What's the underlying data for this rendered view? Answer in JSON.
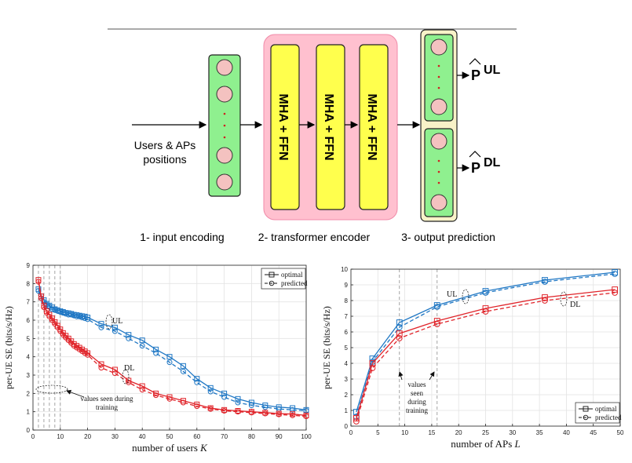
{
  "diagram": {
    "input_label_line1": "Users & APs",
    "input_label_line2": "positions",
    "block_label": "MHA + FFN",
    "output_p": "P",
    "output_ul": "UL",
    "output_dl": "DL",
    "stage1": "1- input encoding",
    "stage2": "2- transformer encoder",
    "stage3": "3- output prediction",
    "colors": {
      "green": "#8ff08f",
      "yellow": "#ffff4d",
      "pink": "#ffc0cf",
      "node": "#f4c2c0",
      "cream": "#f8f2c8",
      "dot": "#d02020"
    }
  },
  "legend": {
    "optimal": "optimal",
    "predicted": "predicted"
  },
  "chart_data": [
    {
      "type": "line",
      "xlabel": "number of users K",
      "ylabel": "per-UE SE (bits/s/Hz)",
      "xlim": [
        0,
        100
      ],
      "ylim": [
        0,
        9
      ],
      "xticks": [
        0,
        10,
        20,
        30,
        40,
        50,
        60,
        70,
        80,
        90,
        100
      ],
      "yticks": [
        0,
        1,
        2,
        3,
        4,
        5,
        6,
        7,
        8,
        9
      ],
      "grid": true,
      "legend_position": "top-right",
      "training_lines": [
        2,
        4,
        6,
        8,
        10
      ],
      "annotations": {
        "ul": "UL",
        "dl": "DL",
        "training": "values seen during training"
      },
      "x": [
        2,
        3,
        4,
        5,
        6,
        7,
        8,
        9,
        10,
        11,
        12,
        13,
        14,
        15,
        16,
        17,
        18,
        19,
        20,
        25,
        30,
        35,
        40,
        45,
        50,
        55,
        60,
        65,
        70,
        75,
        80,
        85,
        90,
        95,
        100
      ],
      "series": [
        {
          "name": "UL optimal",
          "color": "#1f77c4",
          "dash": false,
          "marker": "square",
          "values": [
            7.7,
            7.3,
            7.1,
            6.9,
            6.8,
            6.7,
            6.6,
            6.55,
            6.5,
            6.45,
            6.4,
            6.38,
            6.35,
            6.3,
            6.28,
            6.25,
            6.22,
            6.2,
            6.15,
            5.8,
            5.6,
            5.2,
            4.9,
            4.4,
            4.0,
            3.5,
            2.8,
            2.3,
            2.0,
            1.7,
            1.5,
            1.35,
            1.25,
            1.2,
            1.1
          ]
        },
        {
          "name": "UL predicted",
          "color": "#1f77c4",
          "dash": true,
          "marker": "circle",
          "values": [
            7.6,
            7.2,
            7.0,
            6.85,
            6.75,
            6.6,
            6.55,
            6.5,
            6.45,
            6.4,
            6.35,
            6.3,
            6.3,
            6.25,
            6.2,
            6.2,
            6.15,
            6.1,
            6.05,
            5.6,
            5.4,
            5.0,
            4.6,
            4.2,
            3.7,
            3.2,
            2.6,
            2.1,
            1.8,
            1.5,
            1.35,
            1.25,
            1.15,
            1.1,
            1.05
          ]
        },
        {
          "name": "DL optimal",
          "color": "#e0242a",
          "dash": false,
          "marker": "square",
          "values": [
            8.2,
            7.3,
            6.8,
            6.5,
            6.3,
            6.1,
            5.9,
            5.7,
            5.5,
            5.3,
            5.15,
            5.0,
            4.85,
            4.7,
            4.6,
            4.5,
            4.4,
            4.3,
            4.2,
            3.6,
            3.3,
            2.7,
            2.4,
            2.0,
            1.8,
            1.6,
            1.4,
            1.2,
            1.1,
            1.05,
            1.0,
            0.95,
            0.9,
            0.87,
            0.8
          ]
        },
        {
          "name": "DL predicted",
          "color": "#e0242a",
          "dash": true,
          "marker": "circle",
          "values": [
            8.1,
            7.2,
            6.7,
            6.4,
            6.2,
            6.0,
            5.8,
            5.6,
            5.4,
            5.2,
            5.05,
            4.9,
            4.75,
            4.6,
            4.5,
            4.4,
            4.3,
            4.2,
            4.1,
            3.4,
            3.1,
            2.6,
            2.2,
            1.9,
            1.7,
            1.5,
            1.3,
            1.15,
            1.05,
            1.0,
            0.95,
            0.9,
            0.85,
            0.8,
            0.75
          ]
        }
      ]
    },
    {
      "type": "line",
      "xlabel": "number of APs L",
      "ylabel": "per-UE SE (bits/s/Hz)",
      "xlim": [
        0,
        50
      ],
      "ylim": [
        0,
        10
      ],
      "xticks": [
        0,
        5,
        10,
        15,
        20,
        25,
        30,
        35,
        40,
        45,
        50
      ],
      "yticks": [
        0,
        1,
        2,
        3,
        4,
        5,
        6,
        7,
        8,
        9,
        10
      ],
      "grid": true,
      "legend_position": "bottom-right",
      "training_lines": [
        9,
        16
      ],
      "annotations": {
        "ul": "UL",
        "dl": "DL",
        "training": "values seen during training"
      },
      "x": [
        1,
        4,
        9,
        16,
        25,
        36,
        49
      ],
      "series": [
        {
          "name": "UL optimal",
          "color": "#1f77c4",
          "dash": false,
          "marker": "square",
          "values": [
            0.9,
            4.3,
            6.6,
            7.7,
            8.6,
            9.3,
            9.8
          ]
        },
        {
          "name": "UL predicted",
          "color": "#1f77c4",
          "dash": true,
          "marker": "circle",
          "values": [
            0.6,
            4.1,
            6.3,
            7.6,
            8.5,
            9.2,
            9.7
          ]
        },
        {
          "name": "DL optimal",
          "color": "#e0242a",
          "dash": false,
          "marker": "square",
          "values": [
            0.5,
            4.0,
            5.9,
            6.7,
            7.5,
            8.2,
            8.7
          ]
        },
        {
          "name": "DL predicted",
          "color": "#e0242a",
          "dash": true,
          "marker": "circle",
          "values": [
            0.3,
            3.7,
            5.6,
            6.5,
            7.3,
            8.0,
            8.5
          ]
        }
      ]
    }
  ]
}
